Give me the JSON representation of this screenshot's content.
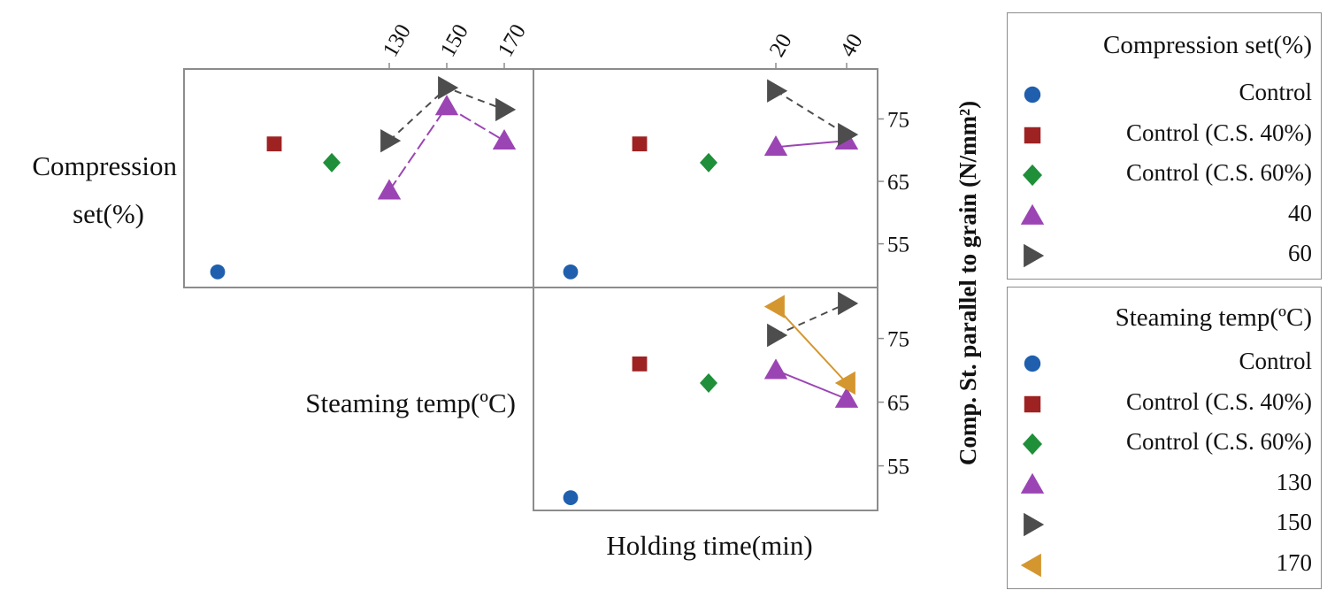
{
  "chart_data": {
    "type": "scatter",
    "ylabel": "Comp. St. parallel to grain (N/mm²)",
    "y_ticks": [
      "75",
      "65",
      "55"
    ],
    "ylim": [
      48,
      83
    ],
    "row_labels": [
      "Compression set(%)",
      "Steaming temp(ºC)"
    ],
    "column_tick_labels": {
      "steaming_temp": [
        "130",
        "150",
        "170"
      ],
      "holding_time": [
        "20",
        "40"
      ]
    },
    "xlabel": "Holding time(min)",
    "panels": [
      {
        "id": "steaming-temp-by-compression-set",
        "row": 0,
        "col": 0,
        "x_axis": "steaming_temp",
        "controls": [
          {
            "name": "Control",
            "y": 50.5
          },
          {
            "name": "Control (C.S. 40%)",
            "y": 71
          },
          {
            "name": "Control (C.S. 60%)",
            "y": 68
          }
        ],
        "series": [
          {
            "name": "40",
            "marker": "triangle-up",
            "color": "#9b45b4",
            "x": [
              130,
              150,
              170
            ],
            "y": [
              63.5,
              77,
              71.5
            ]
          },
          {
            "name": "60",
            "marker": "triangle-right",
            "color": "#4d4d4d",
            "x": [
              130,
              150,
              170
            ],
            "y": [
              71.5,
              80,
              76.5
            ]
          }
        ]
      },
      {
        "id": "holding-time-by-compression-set",
        "row": 0,
        "col": 1,
        "x_axis": "holding_time",
        "controls": [
          {
            "name": "Control",
            "y": 50.5
          },
          {
            "name": "Control (C.S. 40%)",
            "y": 71
          },
          {
            "name": "Control (C.S. 60%)",
            "y": 68
          }
        ],
        "series": [
          {
            "name": "40",
            "marker": "triangle-up",
            "color": "#9b45b4",
            "x": [
              20,
              40
            ],
            "y": [
              70.5,
              71.5
            ]
          },
          {
            "name": "60",
            "marker": "triangle-right",
            "color": "#4d4d4d",
            "x": [
              20,
              40
            ],
            "y": [
              79.5,
              72.5
            ]
          }
        ]
      },
      {
        "id": "holding-time-by-steaming-temp",
        "row": 1,
        "col": 1,
        "x_axis": "holding_time",
        "controls": [
          {
            "name": "Control",
            "y": 50
          }
        ],
        "series_controls": [
          {
            "name": "Control (C.S. 40%)",
            "y": 71
          },
          {
            "name": "Control (C.S. 60%)",
            "y": 68
          }
        ],
        "series": [
          {
            "name": "130",
            "marker": "triangle-up",
            "color": "#9b45b4",
            "x": [
              20,
              40
            ],
            "y": [
              70,
              65.5
            ]
          },
          {
            "name": "150",
            "marker": "triangle-right",
            "color": "#4d4d4d",
            "x": [
              20,
              40
            ],
            "y": [
              75.5,
              80.5
            ]
          },
          {
            "name": "170",
            "marker": "triangle-left",
            "color": "#d4962e",
            "x": [
              20,
              40
            ],
            "y": [
              80,
              68
            ]
          }
        ]
      }
    ],
    "legends": [
      {
        "title": "Compression set(%)",
        "items": [
          {
            "label": "Control",
            "marker": "circle",
            "color": "#1f5fae"
          },
          {
            "label": "Control (C.S. 40%)",
            "marker": "square",
            "color": "#9e2222"
          },
          {
            "label": "Control (C.S. 60%)",
            "marker": "diamond",
            "color": "#1f8f3a"
          },
          {
            "label": "40",
            "marker": "triangle-up",
            "color": "#9b45b4"
          },
          {
            "label": "60",
            "marker": "triangle-right",
            "color": "#4d4d4d"
          }
        ]
      },
      {
        "title": "Steaming temp(ºC)",
        "items": [
          {
            "label": "Control",
            "marker": "circle",
            "color": "#1f5fae"
          },
          {
            "label": "Control (C.S. 40%)",
            "marker": "square",
            "color": "#9e2222"
          },
          {
            "label": "Control (C.S. 60%)",
            "marker": "diamond",
            "color": "#1f8f3a"
          },
          {
            "label": "130",
            "marker": "triangle-up",
            "color": "#9b45b4"
          },
          {
            "label": "150",
            "marker": "triangle-right",
            "color": "#4d4d4d"
          },
          {
            "label": "170",
            "marker": "triangle-left",
            "color": "#d4962e"
          }
        ]
      }
    ]
  }
}
